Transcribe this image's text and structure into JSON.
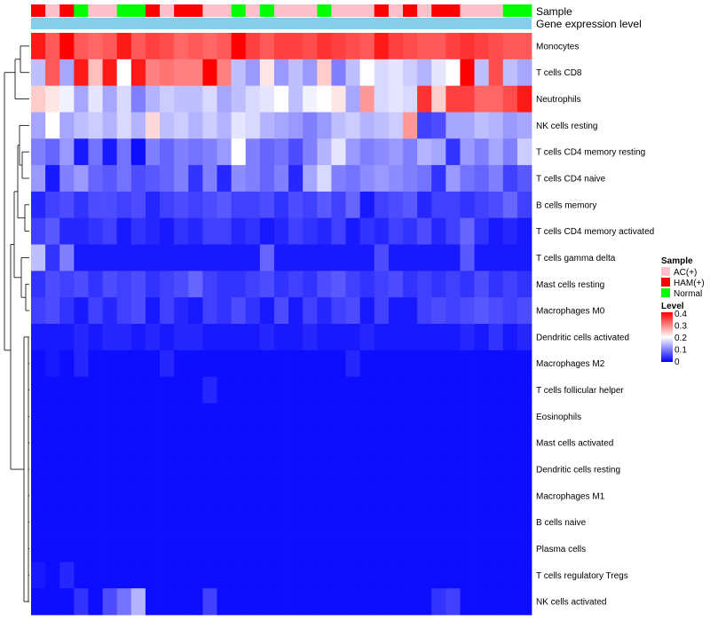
{
  "chart_data": {
    "type": "heatmap",
    "title": "",
    "annotation_tracks": [
      "Sample",
      "Gene expression level"
    ],
    "rows": [
      "Monocytes",
      "T cells CD8",
      "Neutrophils",
      "NK cells resting",
      "T cells CD4 memory resting",
      "T cells CD4 naive",
      "B cells memory",
      "T cells CD4 memory activated",
      "T cells gamma delta",
      "Mast cells resting",
      "Macrophages M0",
      "Dendritic cells activated",
      "Macrophages M2",
      "T cells follicular helper",
      "Eosinophils",
      "Mast cells activated",
      "Dendritic cells resting",
      "Macrophages M1",
      "B cells naive",
      "Plasma cells",
      "T cells regulatory  Tregs",
      "NK cells activated"
    ],
    "sample_groups": [
      "HAM(+)",
      "AC(+)",
      "HAM(+)",
      "Normal",
      "AC(+)",
      "AC(+)",
      "Normal",
      "Normal",
      "HAM(+)",
      "AC(+)",
      "HAM(+)",
      "HAM(+)",
      "AC(+)",
      "AC(+)",
      "Normal",
      "AC(+)",
      "Normal",
      "AC(+)",
      "AC(+)",
      "AC(+)",
      "Normal",
      "AC(+)",
      "AC(+)",
      "AC(+)",
      "HAM(+)",
      "AC(+)",
      "HAM(+)",
      "AC(+)",
      "HAM(+)",
      "HAM(+)",
      "AC(+)",
      "AC(+)",
      "AC(+)",
      "Normal",
      "Normal"
    ],
    "values": [
      [
        0.38,
        0.33,
        0.4,
        0.33,
        0.32,
        0.33,
        0.38,
        0.33,
        0.35,
        0.34,
        0.32,
        0.33,
        0.32,
        0.33,
        0.4,
        0.35,
        0.33,
        0.35,
        0.35,
        0.34,
        0.36,
        0.35,
        0.34,
        0.33,
        0.38,
        0.35,
        0.34,
        0.33,
        0.33,
        0.35,
        0.36,
        0.35,
        0.34,
        0.33,
        0.33
      ],
      [
        0.15,
        0.33,
        0.13,
        0.38,
        0.25,
        0.38,
        0.2,
        0.38,
        0.3,
        0.31,
        0.3,
        0.3,
        0.4,
        0.3,
        0.15,
        0.12,
        0.22,
        0.12,
        0.15,
        0.12,
        0.24,
        0.1,
        0.15,
        0.2,
        0.17,
        0.18,
        0.16,
        0.14,
        0.18,
        0.2,
        0.4,
        0.15,
        0.34,
        0.15,
        0.13
      ],
      [
        0.24,
        0.22,
        0.19,
        0.13,
        0.18,
        0.13,
        0.17,
        0.1,
        0.14,
        0.16,
        0.15,
        0.15,
        0.17,
        0.13,
        0.15,
        0.17,
        0.18,
        0.2,
        0.15,
        0.19,
        0.2,
        0.22,
        0.13,
        0.28,
        0.17,
        0.18,
        0.17,
        0.36,
        0.24,
        0.35,
        0.35,
        0.32,
        0.32,
        0.34,
        0.38
      ],
      [
        0.13,
        0.2,
        0.13,
        0.15,
        0.16,
        0.14,
        0.17,
        0.14,
        0.23,
        0.15,
        0.16,
        0.14,
        0.16,
        0.14,
        0.18,
        0.17,
        0.14,
        0.13,
        0.12,
        0.1,
        0.12,
        0.15,
        0.16,
        0.14,
        0.15,
        0.16,
        0.28,
        0.05,
        0.06,
        0.13,
        0.13,
        0.15,
        0.14,
        0.12,
        0.13
      ],
      [
        0.1,
        0.08,
        0.12,
        0.02,
        0.09,
        0.02,
        0.09,
        0.01,
        0.1,
        0.08,
        0.1,
        0.09,
        0.1,
        0.12,
        0.2,
        0.1,
        0.08,
        0.09,
        0.06,
        0.1,
        0.14,
        0.18,
        0.12,
        0.1,
        0.11,
        0.12,
        0.1,
        0.14,
        0.13,
        0.04,
        0.12,
        0.1,
        0.13,
        0.1,
        0.16
      ],
      [
        0.12,
        0.02,
        0.1,
        0.12,
        0.08,
        0.07,
        0.09,
        0.06,
        0.07,
        0.08,
        0.1,
        0.04,
        0.1,
        0.03,
        0.11,
        0.1,
        0.08,
        0.1,
        0.03,
        0.13,
        0.17,
        0.1,
        0.09,
        0.11,
        0.12,
        0.11,
        0.1,
        0.09,
        0.04,
        0.12,
        0.09,
        0.08,
        0.1,
        0.05,
        0.07
      ],
      [
        0.03,
        0.05,
        0.06,
        0.04,
        0.06,
        0.06,
        0.05,
        0.06,
        0.03,
        0.05,
        0.06,
        0.05,
        0.06,
        0.07,
        0.05,
        0.05,
        0.06,
        0.04,
        0.06,
        0.05,
        0.07,
        0.05,
        0.08,
        0.02,
        0.05,
        0.06,
        0.07,
        0.03,
        0.05,
        0.05,
        0.04,
        0.05,
        0.06,
        0.08,
        0.05
      ],
      [
        0.05,
        0.07,
        0.03,
        0.03,
        0.04,
        0.05,
        0.02,
        0.04,
        0.03,
        0.02,
        0.04,
        0.03,
        0.05,
        0.05,
        0.03,
        0.04,
        0.02,
        0.03,
        0.05,
        0.04,
        0.03,
        0.05,
        0.02,
        0.04,
        0.03,
        0.05,
        0.04,
        0.06,
        0.03,
        0.05,
        0.08,
        0.04,
        0.02,
        0.03,
        0.02
      ],
      [
        0.15,
        0.04,
        0.1,
        0.02,
        0.02,
        0.02,
        0.02,
        0.02,
        0.02,
        0.02,
        0.02,
        0.02,
        0.02,
        0.02,
        0.02,
        0.02,
        0.08,
        0.02,
        0.02,
        0.02,
        0.02,
        0.02,
        0.02,
        0.02,
        0.06,
        0.02,
        0.02,
        0.02,
        0.02,
        0.02,
        0.07,
        0.02,
        0.02,
        0.02,
        0.02
      ],
      [
        0.04,
        0.06,
        0.05,
        0.06,
        0.04,
        0.06,
        0.05,
        0.06,
        0.04,
        0.05,
        0.06,
        0.08,
        0.05,
        0.04,
        0.04,
        0.05,
        0.06,
        0.04,
        0.05,
        0.04,
        0.06,
        0.07,
        0.05,
        0.04,
        0.05,
        0.06,
        0.04,
        0.05,
        0.04,
        0.05,
        0.04,
        0.06,
        0.04,
        0.05,
        0.04
      ],
      [
        0.05,
        0.06,
        0.04,
        0.02,
        0.05,
        0.03,
        0.05,
        0.06,
        0.02,
        0.05,
        0.03,
        0.02,
        0.05,
        0.04,
        0.06,
        0.04,
        0.02,
        0.06,
        0.02,
        0.05,
        0.03,
        0.05,
        0.06,
        0.02,
        0.05,
        0.02,
        0.02,
        0.05,
        0.06,
        0.05,
        0.06,
        0.07,
        0.06,
        0.05,
        0.06
      ],
      [
        0.02,
        0.02,
        0.02,
        0.03,
        0.02,
        0.03,
        0.03,
        0.02,
        0.03,
        0.02,
        0.03,
        0.03,
        0.02,
        0.02,
        0.02,
        0.02,
        0.03,
        0.02,
        0.02,
        0.03,
        0.02,
        0.02,
        0.02,
        0.03,
        0.02,
        0.02,
        0.02,
        0.02,
        0.02,
        0.02,
        0.03,
        0.02,
        0.04,
        0.02,
        0.03
      ],
      [
        0.01,
        0.02,
        0.01,
        0.03,
        0.01,
        0.01,
        0.01,
        0.01,
        0.01,
        0.03,
        0.01,
        0.01,
        0.01,
        0.01,
        0.01,
        0.01,
        0.01,
        0.01,
        0.01,
        0.01,
        0.01,
        0.01,
        0.03,
        0.01,
        0.01,
        0.01,
        0.01,
        0.01,
        0.01,
        0.01,
        0.01,
        0.01,
        0.01,
        0.01,
        0.01
      ],
      [
        0.01,
        0.01,
        0.01,
        0.01,
        0.01,
        0.01,
        0.01,
        0.01,
        0.01,
        0.01,
        0.01,
        0.01,
        0.03,
        0.01,
        0.01,
        0.01,
        0.01,
        0.01,
        0.01,
        0.01,
        0.01,
        0.01,
        0.01,
        0.01,
        0.01,
        0.01,
        0.01,
        0.01,
        0.01,
        0.01,
        0.01,
        0.01,
        0.01,
        0.01,
        0.01
      ],
      [
        0.01,
        0.01,
        0.01,
        0.01,
        0.01,
        0.01,
        0.01,
        0.01,
        0.01,
        0.01,
        0.01,
        0.01,
        0.01,
        0.01,
        0.01,
        0.01,
        0.01,
        0.01,
        0.01,
        0.01,
        0.01,
        0.01,
        0.01,
        0.01,
        0.01,
        0.01,
        0.01,
        0.01,
        0.01,
        0.01,
        0.01,
        0.01,
        0.01,
        0.01,
        0.01
      ],
      [
        0.01,
        0.01,
        0.01,
        0.01,
        0.01,
        0.01,
        0.01,
        0.01,
        0.01,
        0.01,
        0.01,
        0.01,
        0.01,
        0.01,
        0.01,
        0.01,
        0.01,
        0.01,
        0.01,
        0.01,
        0.01,
        0.01,
        0.01,
        0.01,
        0.01,
        0.01,
        0.01,
        0.01,
        0.01,
        0.01,
        0.01,
        0.01,
        0.01,
        0.01,
        0.01
      ],
      [
        0.01,
        0.01,
        0.01,
        0.01,
        0.01,
        0.01,
        0.01,
        0.01,
        0.01,
        0.01,
        0.01,
        0.01,
        0.01,
        0.01,
        0.01,
        0.01,
        0.01,
        0.01,
        0.01,
        0.01,
        0.01,
        0.01,
        0.01,
        0.01,
        0.01,
        0.01,
        0.01,
        0.01,
        0.01,
        0.01,
        0.01,
        0.01,
        0.01,
        0.01,
        0.01
      ],
      [
        0.01,
        0.01,
        0.01,
        0.01,
        0.01,
        0.01,
        0.01,
        0.01,
        0.01,
        0.01,
        0.01,
        0.01,
        0.01,
        0.01,
        0.01,
        0.01,
        0.01,
        0.01,
        0.01,
        0.01,
        0.01,
        0.01,
        0.01,
        0.01,
        0.01,
        0.01,
        0.01,
        0.01,
        0.01,
        0.01,
        0.01,
        0.01,
        0.01,
        0.01,
        0.01
      ],
      [
        0.01,
        0.01,
        0.01,
        0.01,
        0.01,
        0.01,
        0.01,
        0.01,
        0.01,
        0.01,
        0.01,
        0.01,
        0.01,
        0.01,
        0.01,
        0.01,
        0.01,
        0.01,
        0.01,
        0.01,
        0.01,
        0.01,
        0.01,
        0.01,
        0.01,
        0.01,
        0.01,
        0.01,
        0.01,
        0.01,
        0.01,
        0.01,
        0.01,
        0.01,
        0.01
      ],
      [
        0.01,
        0.01,
        0.01,
        0.01,
        0.01,
        0.01,
        0.01,
        0.01,
        0.01,
        0.01,
        0.01,
        0.01,
        0.01,
        0.01,
        0.01,
        0.01,
        0.01,
        0.01,
        0.01,
        0.01,
        0.01,
        0.01,
        0.01,
        0.01,
        0.01,
        0.01,
        0.01,
        0.01,
        0.01,
        0.01,
        0.01,
        0.01,
        0.01,
        0.01,
        0.01
      ],
      [
        0.02,
        0.01,
        0.03,
        0.01,
        0.01,
        0.01,
        0.01,
        0.01,
        0.01,
        0.01,
        0.01,
        0.01,
        0.01,
        0.01,
        0.01,
        0.01,
        0.01,
        0.01,
        0.01,
        0.01,
        0.01,
        0.01,
        0.01,
        0.01,
        0.01,
        0.01,
        0.01,
        0.01,
        0.01,
        0.01,
        0.01,
        0.01,
        0.01,
        0.01,
        0.01
      ],
      [
        0.01,
        0.01,
        0.01,
        0.04,
        0.01,
        0.06,
        0.09,
        0.14,
        0.01,
        0.01,
        0.01,
        0.01,
        0.05,
        0.01,
        0.01,
        0.01,
        0.01,
        0.01,
        0.01,
        0.01,
        0.01,
        0.01,
        0.01,
        0.01,
        0.01,
        0.01,
        0.01,
        0.01,
        0.04,
        0.05,
        0.01,
        0.01,
        0.01,
        0.01,
        0.01
      ]
    ],
    "legend": {
      "sample_title": "Sample",
      "groups": [
        {
          "label": "AC(+)",
          "color": "#ffc0cb"
        },
        {
          "label": "HAM(+)",
          "color": "#ff0000"
        },
        {
          "label": "Normal",
          "color": "#00ff00"
        }
      ],
      "level_title": "Level",
      "ticks": [
        "0.4",
        "0.3",
        "0.2",
        "0.1",
        "0"
      ],
      "range": [
        0,
        0.4
      ]
    },
    "expression_track_color": "#87ceeb",
    "colors": {
      "low": "#0000ff",
      "mid": "#ffffff",
      "high": "#ff0000"
    }
  }
}
